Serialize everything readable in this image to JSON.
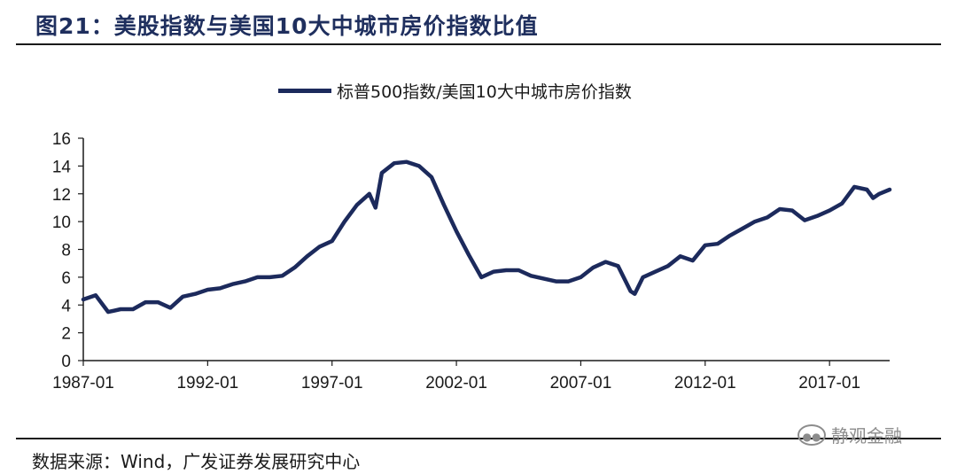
{
  "header": {
    "title": "图21：美股指数与美国10大中城市房价指数比值"
  },
  "source": {
    "text": "数据来源：Wind，广发证券发展研究中心"
  },
  "watermark": {
    "text": "静观金融",
    "icon": "wechat-icon"
  },
  "colors": {
    "series": "#1c2a5c",
    "axis": "#1a1a1a"
  },
  "chart_data": {
    "type": "line",
    "title": "",
    "xlabel": "",
    "ylabel": "",
    "ylim": [
      0,
      16
    ],
    "yticks": [
      0,
      2,
      4,
      6,
      8,
      10,
      12,
      14,
      16
    ],
    "xlim": [
      "1987-01",
      "2019-06"
    ],
    "xticks": [
      "1987-01",
      "1992-01",
      "1997-01",
      "2002-01",
      "2007-01",
      "2012-01",
      "2017-01"
    ],
    "grid": false,
    "legend_position": "top-center",
    "series": [
      {
        "name": "标普500指数/美国10大中城市房价指数",
        "x": [
          "1987-01",
          "1987-07",
          "1988-01",
          "1988-07",
          "1989-01",
          "1989-07",
          "1990-01",
          "1990-07",
          "1991-01",
          "1991-07",
          "1992-01",
          "1992-07",
          "1993-01",
          "1993-07",
          "1994-01",
          "1994-07",
          "1995-01",
          "1995-07",
          "1996-01",
          "1996-07",
          "1997-01",
          "1997-07",
          "1998-01",
          "1998-07",
          "1998-10",
          "1999-01",
          "1999-07",
          "2000-01",
          "2000-07",
          "2001-01",
          "2001-07",
          "2002-01",
          "2002-07",
          "2003-01",
          "2003-07",
          "2004-01",
          "2004-07",
          "2005-01",
          "2005-07",
          "2006-01",
          "2006-07",
          "2007-01",
          "2007-07",
          "2008-01",
          "2008-07",
          "2009-01",
          "2009-03",
          "2009-07",
          "2010-01",
          "2010-07",
          "2011-01",
          "2011-07",
          "2012-01",
          "2012-07",
          "2013-01",
          "2013-07",
          "2014-01",
          "2014-07",
          "2015-01",
          "2015-07",
          "2016-01",
          "2016-07",
          "2017-01",
          "2017-07",
          "2018-01",
          "2018-07",
          "2018-10",
          "2019-01",
          "2019-06"
        ],
        "values": [
          4.4,
          4.7,
          3.5,
          3.7,
          3.7,
          4.2,
          4.2,
          3.8,
          4.6,
          4.8,
          5.1,
          5.2,
          5.5,
          5.7,
          6.0,
          6.0,
          6.1,
          6.7,
          7.5,
          8.2,
          8.6,
          10.0,
          11.2,
          12.0,
          11.0,
          13.5,
          14.2,
          14.3,
          14.0,
          13.2,
          11.2,
          9.3,
          7.6,
          6.0,
          6.4,
          6.5,
          6.5,
          6.1,
          5.9,
          5.7,
          5.7,
          6.0,
          6.7,
          7.1,
          6.8,
          5.0,
          4.8,
          6.0,
          6.4,
          6.8,
          7.5,
          7.2,
          8.3,
          8.4,
          9.0,
          9.5,
          10.0,
          10.3,
          10.9,
          10.8,
          10.1,
          10.4,
          10.8,
          11.3,
          12.5,
          12.3,
          11.7,
          12.0,
          12.3
        ]
      }
    ]
  }
}
